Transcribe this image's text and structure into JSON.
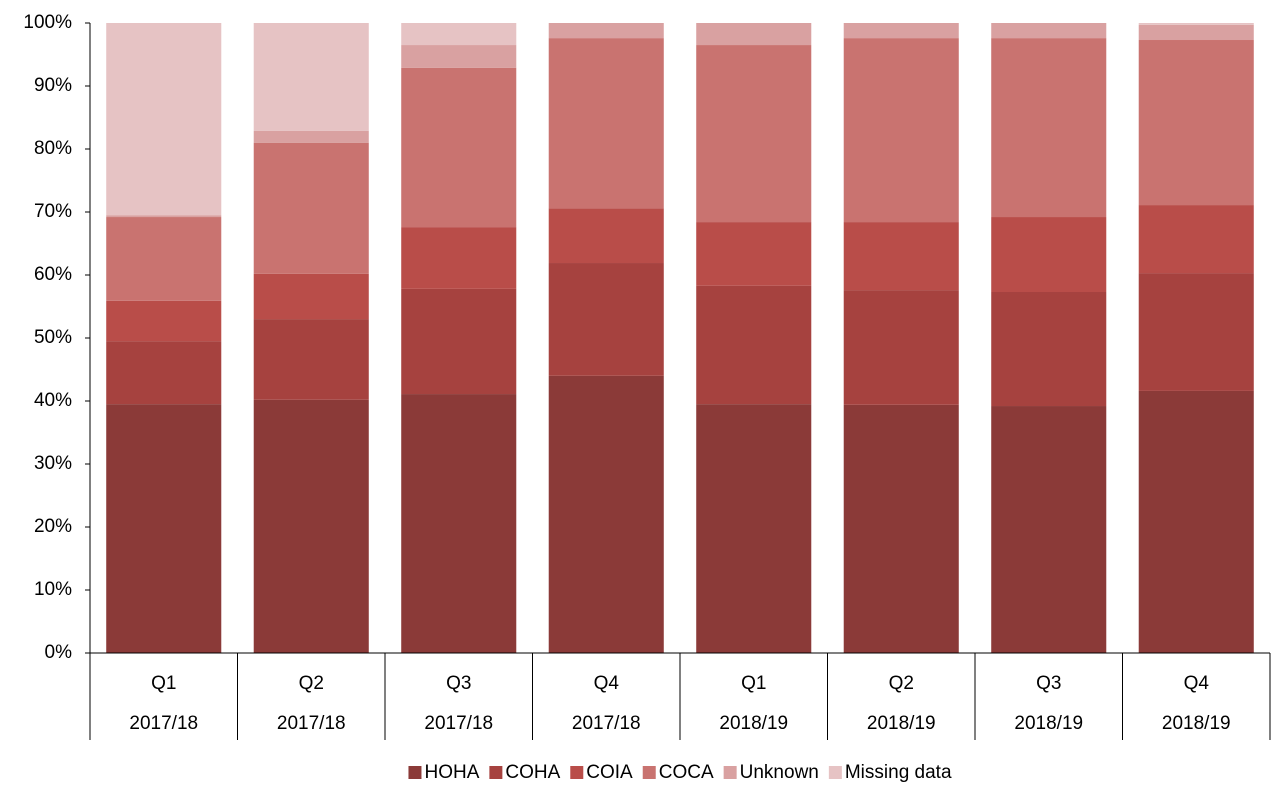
{
  "chart_data": {
    "type": "stacked_bar",
    "categories": [
      [
        "Q1",
        "2017/18"
      ],
      [
        "Q2",
        "2017/18"
      ],
      [
        "Q3",
        "2017/18"
      ],
      [
        "Q4",
        "2017/18"
      ],
      [
        "Q1",
        "2018/19"
      ],
      [
        "Q2",
        "2018/19"
      ],
      [
        "Q3",
        "2018/19"
      ],
      [
        "Q4",
        "2018/19"
      ]
    ],
    "series": [
      {
        "name": "HOHA",
        "color": "#8b3a38",
        "values": [
          39.5,
          40.2,
          41.1,
          44.0,
          39.5,
          39.4,
          39.2,
          41.6
        ]
      },
      {
        "name": "COHA",
        "color": "#a6423f",
        "values": [
          10.0,
          12.8,
          16.7,
          17.9,
          18.8,
          18.2,
          18.1,
          18.7
        ]
      },
      {
        "name": "COIA",
        "color": "#b94d49",
        "values": [
          6.4,
          7.2,
          9.8,
          8.7,
          10.1,
          10.8,
          11.9,
          10.8
        ]
      },
      {
        "name": "COCA",
        "color": "#c97370",
        "values": [
          13.3,
          20.8,
          25.3,
          27.0,
          28.1,
          29.2,
          28.4,
          26.2
        ]
      },
      {
        "name": "Unknown",
        "color": "#d9a1a1",
        "values": [
          0.3,
          1.9,
          3.6,
          2.4,
          3.5,
          2.4,
          2.4,
          2.4
        ]
      },
      {
        "name": "Missing data",
        "color": "#e6c3c4",
        "values": [
          30.5,
          17.1,
          3.5,
          0,
          0,
          0,
          0,
          0.3
        ]
      }
    ],
    "ylim": [
      0,
      100
    ],
    "yticks": [
      {
        "value": 0,
        "label": "0%"
      },
      {
        "value": 10,
        "label": "10%"
      },
      {
        "value": 20,
        "label": "20%"
      },
      {
        "value": 30,
        "label": "30%"
      },
      {
        "value": 40,
        "label": "40%"
      },
      {
        "value": 50,
        "label": "50%"
      },
      {
        "value": 60,
        "label": "60%"
      },
      {
        "value": 70,
        "label": "70%"
      },
      {
        "value": 80,
        "label": "80%"
      },
      {
        "value": 90,
        "label": "90%"
      },
      {
        "value": 100,
        "label": "100%"
      }
    ],
    "grid": false,
    "legend": "bottom"
  }
}
